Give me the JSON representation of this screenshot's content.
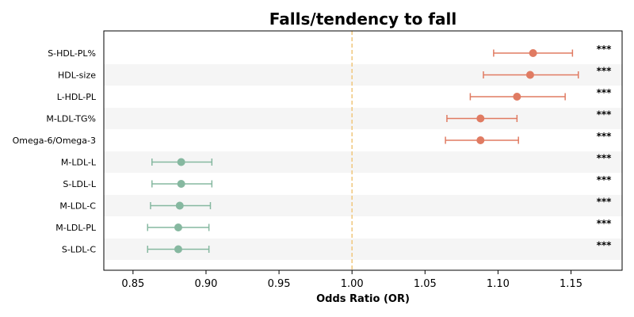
{
  "chart_data": {
    "type": "forest",
    "title": "Falls/tendency to fall",
    "xlabel": "Odds Ratio (OR)",
    "xlim": [
      0.83,
      1.185
    ],
    "xticks": [
      "0.85",
      "0.90",
      "0.95",
      "1.00",
      "1.05",
      "1.10",
      "1.15"
    ],
    "reference_line": 1.0,
    "colors": {
      "positive": "#e07b62",
      "negative": "#86b8a0",
      "reference": "#f0c77c",
      "band": "#f5f5f5"
    },
    "rows": [
      {
        "label": "S-HDL-PL%",
        "or": 1.124,
        "lo": 1.097,
        "hi": 1.151,
        "sig": "***",
        "direction": "positive"
      },
      {
        "label": "HDL-size",
        "or": 1.122,
        "lo": 1.09,
        "hi": 1.155,
        "sig": "***",
        "direction": "positive"
      },
      {
        "label": "L-HDL-PL",
        "or": 1.113,
        "lo": 1.081,
        "hi": 1.146,
        "sig": "***",
        "direction": "positive"
      },
      {
        "label": "M-LDL-TG%",
        "or": 1.088,
        "lo": 1.065,
        "hi": 1.113,
        "sig": "***",
        "direction": "positive"
      },
      {
        "label": "Omega-6/Omega-3",
        "or": 1.088,
        "lo": 1.064,
        "hi": 1.114,
        "sig": "***",
        "direction": "positive"
      },
      {
        "label": "M-LDL-L",
        "or": 0.883,
        "lo": 0.863,
        "hi": 0.904,
        "sig": "***",
        "direction": "negative"
      },
      {
        "label": "S-LDL-L",
        "or": 0.883,
        "lo": 0.863,
        "hi": 0.904,
        "sig": "***",
        "direction": "negative"
      },
      {
        "label": "M-LDL-C",
        "or": 0.882,
        "lo": 0.862,
        "hi": 0.903,
        "sig": "***",
        "direction": "negative"
      },
      {
        "label": "M-LDL-PL",
        "or": 0.881,
        "lo": 0.86,
        "hi": 0.902,
        "sig": "***",
        "direction": "negative"
      },
      {
        "label": "S-LDL-C",
        "or": 0.881,
        "lo": 0.86,
        "hi": 0.902,
        "sig": "***",
        "direction": "negative"
      }
    ]
  }
}
